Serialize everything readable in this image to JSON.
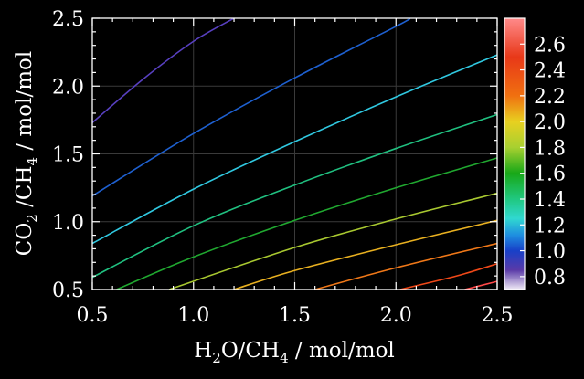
{
  "chart_data": {
    "type": "contour",
    "title": "",
    "xlabel": "H₂O/CH₄ / mol/mol",
    "ylabel": "CO₂ /CH₄ / mol/mol",
    "xlabel_parts": {
      "a": "H",
      "a_sub": "2",
      "b": "O/CH",
      "b_sub": "4",
      "c": " / mol/mol"
    },
    "ylabel_parts": {
      "a": "CO",
      "a_sub": "2",
      "b": " /CH",
      "b_sub": "4",
      "c": " / mol/mol"
    },
    "xlim": [
      0.5,
      2.5
    ],
    "ylim": [
      0.5,
      2.5
    ],
    "xticks": [
      "0.5",
      "1.0",
      "1.5",
      "2.0",
      "2.5"
    ],
    "yticks": [
      "0.5",
      "1.0",
      "1.5",
      "2.0",
      "2.5"
    ],
    "grid": true,
    "colorbar": {
      "placement": "right",
      "range": [
        0.7,
        2.8
      ],
      "ticks": [
        "0.8",
        "1.0",
        "1.2",
        "1.4",
        "1.6",
        "1.8",
        "2.0",
        "2.2",
        "2.4",
        "2.6"
      ],
      "stops": [
        {
          "v": 0.7,
          "color": "#f0eaf6"
        },
        {
          "v": 0.85,
          "color": "#5a3aa8"
        },
        {
          "v": 1.0,
          "color": "#1840c8"
        },
        {
          "v": 1.12,
          "color": "#1e8ee0"
        },
        {
          "v": 1.25,
          "color": "#30d8d0"
        },
        {
          "v": 1.4,
          "color": "#20c880"
        },
        {
          "v": 1.6,
          "color": "#18a818"
        },
        {
          "v": 1.8,
          "color": "#a8d030"
        },
        {
          "v": 2.0,
          "color": "#e8d020"
        },
        {
          "v": 2.2,
          "color": "#f07010"
        },
        {
          "v": 2.5,
          "color": "#e83818"
        },
        {
          "v": 2.8,
          "color": "#ff8a8a"
        }
      ]
    },
    "series": [
      {
        "color": "#5840c0",
        "points": [
          [
            0.5,
            1.73
          ],
          [
            0.75,
            2.05
          ],
          [
            1.0,
            2.33
          ],
          [
            1.2,
            2.5
          ]
        ]
      },
      {
        "color": "#1e60d0",
        "points": [
          [
            0.5,
            1.19
          ],
          [
            1.0,
            1.65
          ],
          [
            1.5,
            2.06
          ],
          [
            2.0,
            2.44
          ],
          [
            2.07,
            2.5
          ]
        ]
      },
      {
        "color": "#30c8e0",
        "points": [
          [
            0.5,
            0.84
          ],
          [
            1.0,
            1.24
          ],
          [
            1.5,
            1.59
          ],
          [
            2.0,
            1.92
          ],
          [
            2.5,
            2.23
          ]
        ]
      },
      {
        "color": "#20c080",
        "points": [
          [
            0.5,
            0.59
          ],
          [
            1.0,
            0.97
          ],
          [
            1.5,
            1.27
          ],
          [
            2.0,
            1.54
          ],
          [
            2.5,
            1.79
          ]
        ]
      },
      {
        "color": "#20a830",
        "points": [
          [
            0.62,
            0.5
          ],
          [
            1.0,
            0.74
          ],
          [
            1.5,
            1.01
          ],
          [
            2.0,
            1.25
          ],
          [
            2.5,
            1.47
          ]
        ]
      },
      {
        "color": "#a8c830",
        "points": [
          [
            0.88,
            0.5
          ],
          [
            1.5,
            0.81
          ],
          [
            2.0,
            1.02
          ],
          [
            2.5,
            1.21
          ]
        ]
      },
      {
        "color": "#e8b020",
        "points": [
          [
            1.2,
            0.5
          ],
          [
            1.5,
            0.64
          ],
          [
            2.0,
            0.83
          ],
          [
            2.5,
            1.01
          ]
        ]
      },
      {
        "color": "#f07818",
        "points": [
          [
            1.6,
            0.5
          ],
          [
            2.0,
            0.66
          ],
          [
            2.5,
            0.84
          ]
        ]
      },
      {
        "color": "#f04818",
        "points": [
          [
            2.02,
            0.5
          ],
          [
            2.3,
            0.6
          ],
          [
            2.5,
            0.69
          ]
        ]
      },
      {
        "color": "#ff4848",
        "points": [
          [
            2.34,
            0.5
          ],
          [
            2.5,
            0.56
          ]
        ]
      }
    ]
  }
}
